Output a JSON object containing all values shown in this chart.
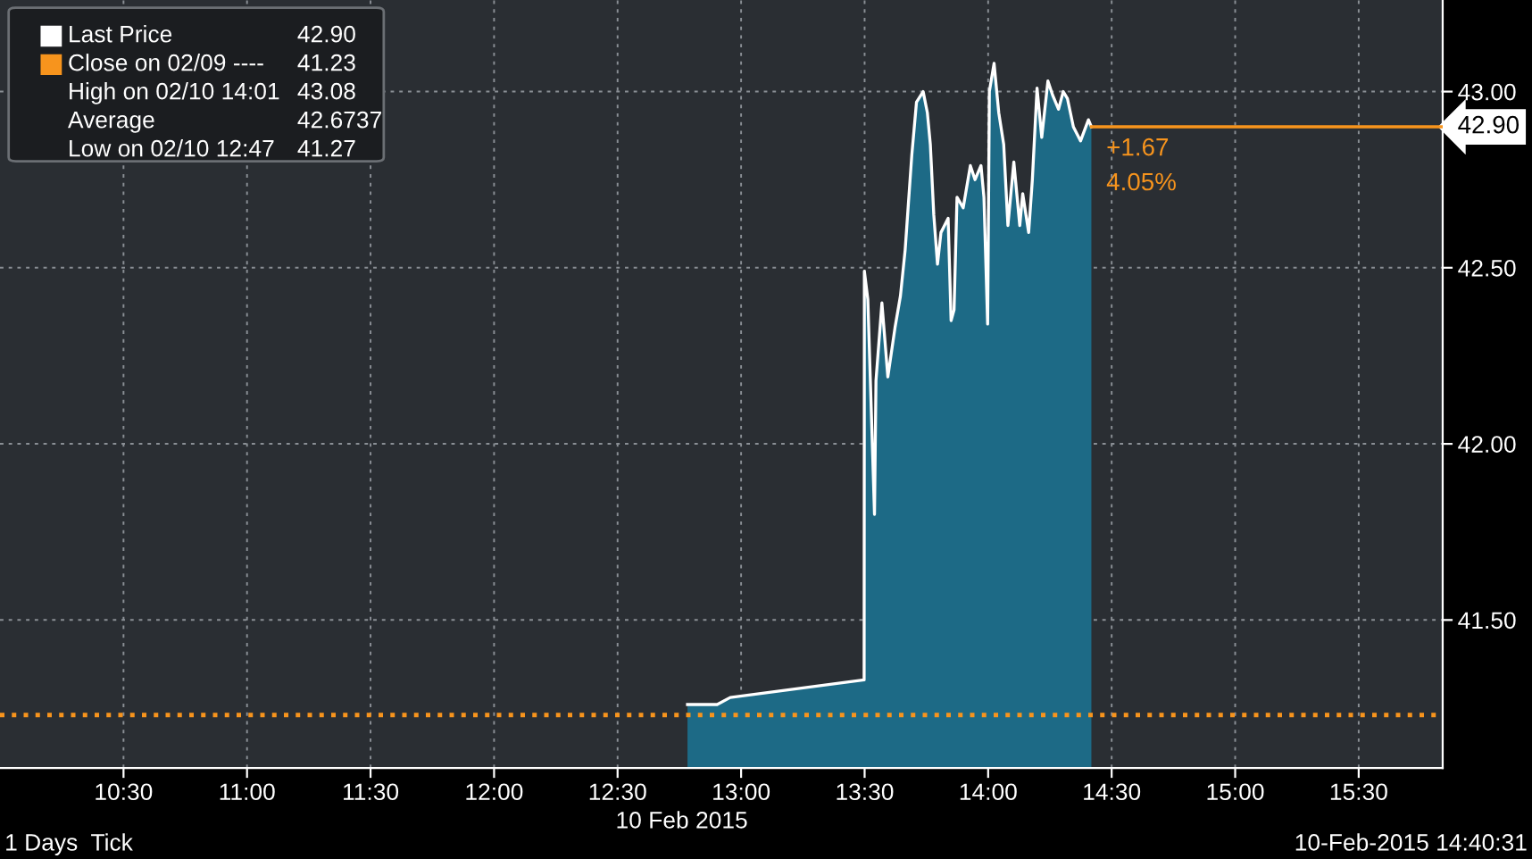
{
  "chart_data": {
    "type": "area",
    "series": [
      {
        "name": "Last Price",
        "color": "#ffffff",
        "x": [
          12.783,
          12.903,
          12.956,
          13.498,
          13.499,
          13.513,
          13.54,
          13.546,
          13.57,
          13.594,
          13.623,
          13.645,
          13.664,
          13.691,
          13.71,
          13.737,
          13.754,
          13.766,
          13.78,
          13.795,
          13.809,
          13.838,
          13.85,
          13.862,
          13.874,
          13.899,
          13.928,
          13.947,
          13.971,
          13.983,
          13.998,
          14.005,
          14.024,
          14.043,
          14.063,
          14.08,
          14.104,
          14.128,
          14.14,
          14.164,
          14.179,
          14.198,
          14.217,
          14.242,
          14.261,
          14.285,
          14.304,
          14.321,
          14.345,
          14.374,
          14.406,
          14.418
        ],
        "values": [
          41.26,
          41.26,
          41.28,
          41.33,
          42.49,
          42.41,
          41.8,
          42.18,
          42.4,
          42.19,
          42.33,
          42.42,
          42.55,
          42.82,
          42.97,
          43.0,
          42.94,
          42.85,
          42.65,
          42.51,
          42.6,
          42.64,
          42.35,
          42.38,
          42.7,
          42.67,
          42.79,
          42.75,
          42.79,
          42.7,
          42.34,
          43.0,
          43.08,
          42.94,
          42.85,
          42.62,
          42.8,
          42.62,
          42.71,
          42.6,
          42.75,
          43.01,
          42.87,
          43.03,
          42.99,
          42.95,
          43.0,
          42.98,
          42.9,
          42.86,
          42.92,
          42.9
        ]
      }
    ],
    "xlim": [
      10.0,
      15.84
    ],
    "xticks": [
      {
        "value": 10.5,
        "label": "10:30"
      },
      {
        "value": 11.0,
        "label": "11:00"
      },
      {
        "value": 11.5,
        "label": "11:30"
      },
      {
        "value": 12.0,
        "label": "12:00"
      },
      {
        "value": 12.5,
        "label": "12:30"
      },
      {
        "value": 13.0,
        "label": "13:00"
      },
      {
        "value": 13.5,
        "label": "13:30"
      },
      {
        "value": 14.0,
        "label": "14:00"
      },
      {
        "value": 14.5,
        "label": "14:30"
      },
      {
        "value": 15.0,
        "label": "15:00"
      },
      {
        "value": 15.5,
        "label": "15:30"
      }
    ],
    "ylim": [
      41.08,
      43.26
    ],
    "yticks": [
      {
        "value": 41.5,
        "label": "41.50"
      },
      {
        "value": 42.0,
        "label": "42.00"
      },
      {
        "value": 42.5,
        "label": "42.50"
      },
      {
        "value": 43.0,
        "label": "43.00"
      }
    ],
    "grid": true,
    "legend": "top left",
    "ref_lines": [
      {
        "axis": "y",
        "value": 41.23,
        "label": "Close on 02/09 ----",
        "color": "#f7941d",
        "line_style": "dotted"
      },
      {
        "axis": "y",
        "value": 42.9,
        "label": "42.90",
        "color": "#f7941d",
        "line_style": "solid"
      }
    ],
    "annotations": [
      "42.90",
      "41.23",
      "High on 02/10 14:01",
      "43.08",
      "Average",
      "42.6737",
      "Low on 02/10 12:47",
      "41.27",
      {
        "text": "+1.67",
        "x": 14.418,
        "y": 42.9
      },
      {
        "text": "4.05%",
        "x": 14.418,
        "y": 42.9
      },
      "10 Feb 2015",
      "1 Days  Tick",
      "10-Feb-2015 14:40:31"
    ]
  }
}
